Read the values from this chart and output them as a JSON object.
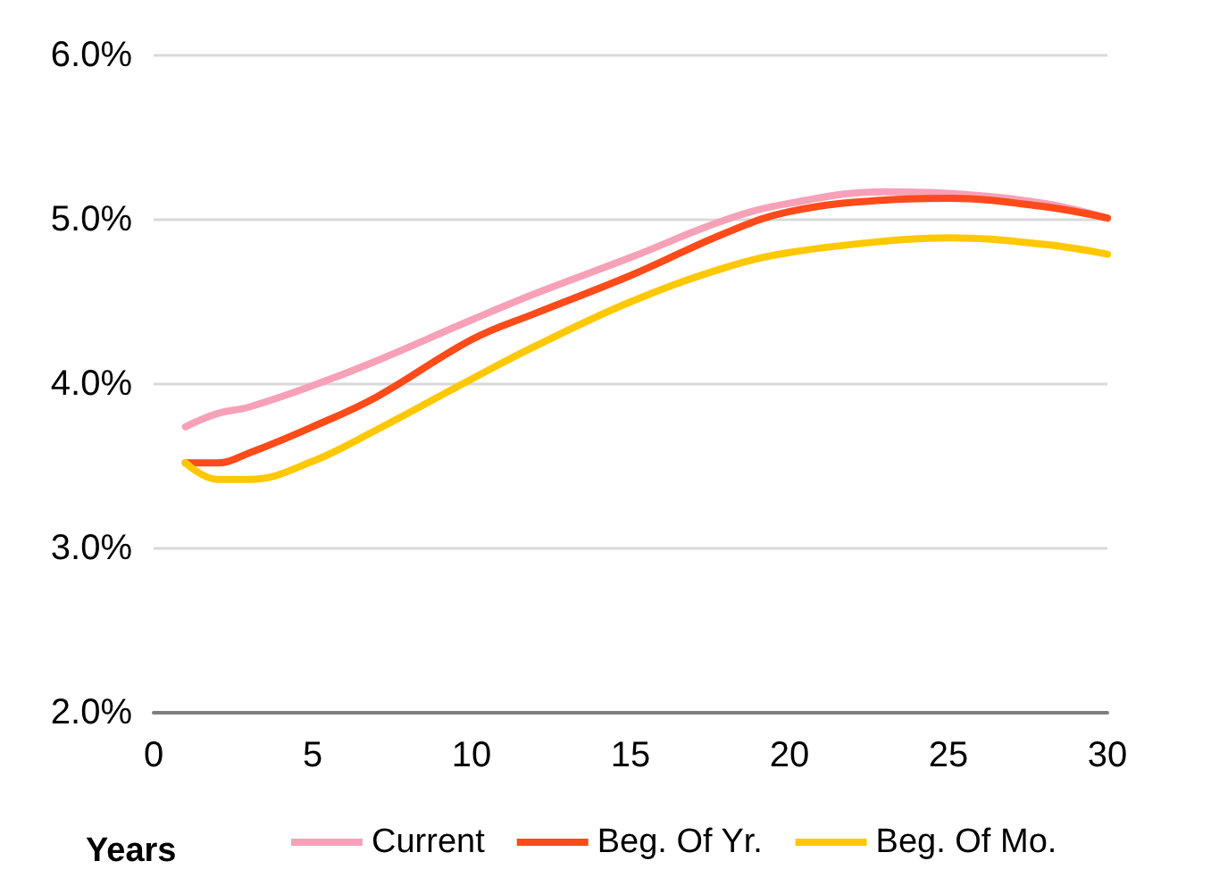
{
  "chart_data": {
    "type": "line",
    "xlabel": "Years",
    "x": [
      1,
      2,
      3,
      5,
      7,
      10,
      12,
      15,
      18,
      20,
      23,
      25,
      28,
      30
    ],
    "series": [
      {
        "name": "Current",
        "color": "#f7a1b8",
        "values": [
          3.74,
          3.82,
          3.86,
          3.99,
          4.14,
          4.39,
          4.55,
          4.77,
          5.0,
          5.1,
          5.17,
          5.16,
          5.1,
          5.01
        ]
      },
      {
        "name": "Beg. Of Yr.",
        "color": "#ff4a1a",
        "values": [
          3.52,
          3.52,
          3.58,
          3.74,
          3.92,
          4.27,
          4.43,
          4.66,
          4.92,
          5.05,
          5.12,
          5.13,
          5.08,
          5.01
        ]
      },
      {
        "name": "Beg. Of Mo.",
        "color": "#ffc800",
        "values": [
          3.52,
          3.42,
          3.42,
          3.53,
          3.72,
          4.03,
          4.23,
          4.5,
          4.71,
          4.8,
          4.87,
          4.89,
          4.85,
          4.79
        ]
      }
    ],
    "xlim": [
      0,
      30
    ],
    "xticks": [
      0,
      5,
      10,
      15,
      20,
      25,
      30
    ],
    "ylim": [
      2,
      6
    ],
    "yticks": [
      {
        "value": 2,
        "label": "2.0%"
      },
      {
        "value": 3,
        "label": "3.0%"
      },
      {
        "value": 4,
        "label": "4.0%"
      },
      {
        "value": 5,
        "label": "5.0%"
      },
      {
        "value": 6,
        "label": "6.0%"
      }
    ],
    "grid": "y",
    "legend": "bottom",
    "marker": "none",
    "line_style": "solid"
  }
}
